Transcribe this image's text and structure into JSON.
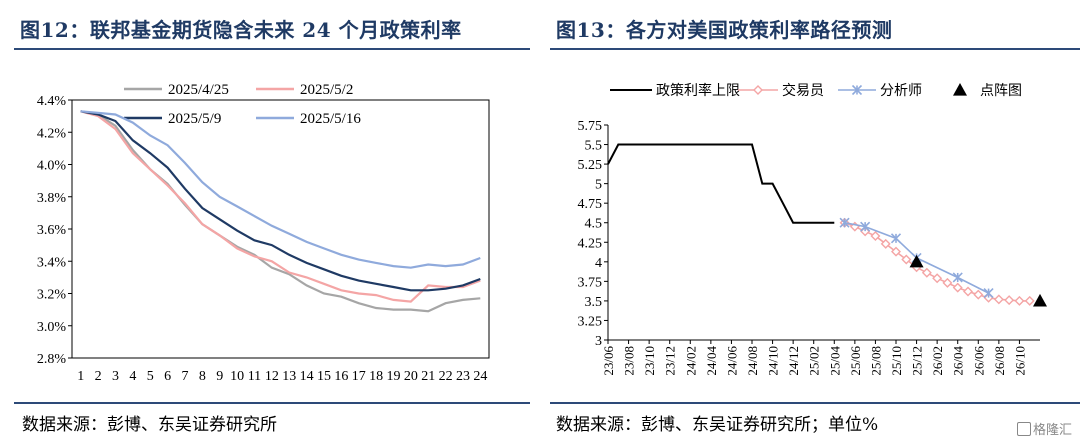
{
  "left": {
    "title": "图12：联邦基金期货隐含未来 24 个月政策利率",
    "source": "数据来源：彭博、东吴证券研究所"
  },
  "right": {
    "title": "图13：各方对美国政策利率路径预测",
    "source": "数据来源：彭博、东吴证券研究所；单位%"
  },
  "watermark": "格隆汇",
  "colors": {
    "title": "#1f3a64",
    "rule": "#2d4a78"
  },
  "chart_data": [
    {
      "type": "line",
      "title": "",
      "xlabel": "",
      "ylabel": "",
      "ylim": [
        2.8,
        4.4
      ],
      "yticks": [
        "2.8%",
        "3.0%",
        "3.2%",
        "3.4%",
        "3.6%",
        "3.8%",
        "4.0%",
        "4.2%",
        "4.4%"
      ],
      "ytick_values": [
        2.8,
        3.0,
        3.2,
        3.4,
        3.6,
        3.8,
        4.0,
        4.2,
        4.4
      ],
      "categories": [
        "1",
        "2",
        "3",
        "4",
        "5",
        "6",
        "7",
        "8",
        "9",
        "10",
        "11",
        "12",
        "13",
        "14",
        "15",
        "16",
        "17",
        "18",
        "19",
        "20",
        "21",
        "22",
        "23",
        "24"
      ],
      "legend_position": "top",
      "series": [
        {
          "name": "2025/4/25",
          "color": "#a6a6a6",
          "values": [
            4.33,
            4.31,
            4.24,
            4.09,
            3.97,
            3.88,
            3.75,
            3.63,
            3.56,
            3.49,
            3.44,
            3.36,
            3.32,
            3.25,
            3.2,
            3.18,
            3.14,
            3.11,
            3.1,
            3.1,
            3.09,
            3.14,
            3.16,
            3.17
          ]
        },
        {
          "name": "2025/5/2",
          "color": "#f4a5a5",
          "values": [
            4.33,
            4.3,
            4.22,
            4.07,
            3.97,
            3.87,
            3.76,
            3.63,
            3.56,
            3.48,
            3.43,
            3.4,
            3.33,
            3.3,
            3.26,
            3.22,
            3.2,
            3.19,
            3.16,
            3.15,
            3.25,
            3.24,
            3.24,
            3.28
          ]
        },
        {
          "name": "2025/5/9",
          "color": "#1f3a64",
          "values": [
            4.33,
            4.31,
            4.27,
            4.15,
            4.07,
            3.98,
            3.85,
            3.73,
            3.66,
            3.59,
            3.53,
            3.5,
            3.44,
            3.39,
            3.35,
            3.31,
            3.28,
            3.26,
            3.24,
            3.22,
            3.22,
            3.23,
            3.25,
            3.29
          ]
        },
        {
          "name": "2025/5/16",
          "color": "#8faadc",
          "values": [
            4.33,
            4.32,
            4.31,
            4.26,
            4.18,
            4.12,
            4.01,
            3.89,
            3.8,
            3.74,
            3.68,
            3.62,
            3.57,
            3.52,
            3.48,
            3.44,
            3.41,
            3.39,
            3.37,
            3.36,
            3.38,
            3.37,
            3.38,
            3.42
          ]
        }
      ]
    },
    {
      "type": "line",
      "title": "",
      "xlabel": "",
      "ylabel": "",
      "ylim": [
        3,
        5.75
      ],
      "yticks": [
        "3",
        "3.25",
        "3.5",
        "3.75",
        "4",
        "4.25",
        "4.5",
        "4.75",
        "5",
        "5.25",
        "5.5",
        "5.75"
      ],
      "ytick_values": [
        3,
        3.25,
        3.5,
        3.75,
        4,
        4.25,
        4.5,
        4.75,
        5,
        5.25,
        5.5,
        5.75
      ],
      "categories": [
        "23/06",
        "23/08",
        "23/10",
        "23/12",
        "24/02",
        "24/04",
        "24/06",
        "24/08",
        "24/10",
        "24/12",
        "25/02",
        "25/04",
        "25/06",
        "25/08",
        "25/10",
        "25/12",
        "26/02",
        "26/04",
        "26/06",
        "26/08",
        "26/10"
      ],
      "legend_position": "top",
      "series": [
        {
          "name": "政策利率上限",
          "color": "#000000",
          "marker": "none",
          "x": [
            "23/06",
            "23/07",
            "24/08",
            "24/09",
            "24/10",
            "24/11",
            "24/12",
            "25/01",
            "25/02",
            "25/03",
            "25/04"
          ],
          "values": [
            5.25,
            5.5,
            5.5,
            5.0,
            5.0,
            4.75,
            4.5,
            4.5,
            4.5,
            4.5,
            4.5
          ]
        },
        {
          "name": "交易员",
          "color": "#f4a5a5",
          "marker": "diamond",
          "x": [
            "25/05",
            "25/06",
            "25/07",
            "25/08",
            "25/09",
            "25/10",
            "25/11",
            "25/12",
            "26/01",
            "26/02",
            "26/03",
            "26/04",
            "26/05",
            "26/06",
            "26/07",
            "26/08",
            "26/09",
            "26/10",
            "26/11"
          ],
          "values": [
            4.5,
            4.45,
            4.39,
            4.33,
            4.23,
            4.13,
            4.03,
            3.93,
            3.86,
            3.79,
            3.73,
            3.67,
            3.62,
            3.58,
            3.54,
            3.52,
            3.51,
            3.5,
            3.5
          ]
        },
        {
          "name": "分析师",
          "color": "#8faadc",
          "marker": "star",
          "x": [
            "25/05",
            "25/07",
            "25/10",
            "25/12",
            "26/04",
            "26/07"
          ],
          "values": [
            4.5,
            4.45,
            4.3,
            4.05,
            3.8,
            3.6
          ]
        },
        {
          "name": "点阵图",
          "color": "#000000",
          "marker": "triangle",
          "x": [
            "25/12",
            "26/12"
          ],
          "values": [
            4.0,
            3.5
          ]
        }
      ]
    }
  ]
}
